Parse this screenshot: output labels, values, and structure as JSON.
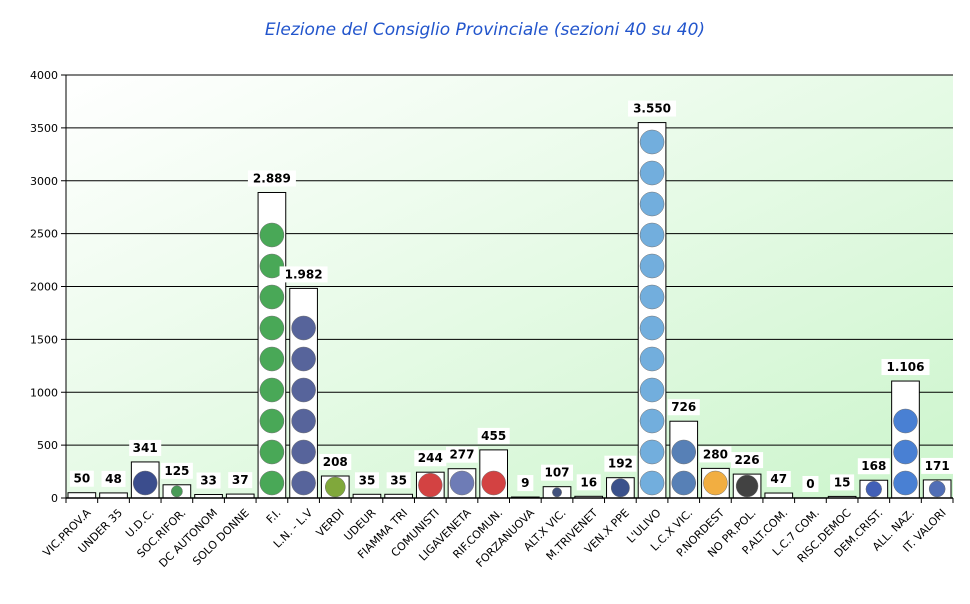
{
  "chart_data": {
    "type": "bar",
    "title": "Elezione del Consiglio Provinciale (sezioni 40 su 40)",
    "xlabel": "",
    "ylabel": "",
    "ylim": [
      0,
      4000
    ],
    "yticks": [
      "0",
      "500",
      "1000",
      "1500",
      "2000",
      "2500",
      "3000",
      "3500",
      "4000"
    ],
    "grid": true,
    "categories": [
      "VIC.PROV.A",
      "UNDER 35",
      "U.D.C.",
      "SOC.RIFOR.",
      "DC AUTONOM",
      "SOLO DONNE",
      "F.I.",
      "L.N. - L.V",
      "VERDI",
      "UDEUR",
      "FIAMMA TRI",
      "COMUNISTI",
      "LIGAVENETA",
      "RIF.COMUN.",
      "FORZANUOVA",
      "ALT.X VIC.",
      "M.TRIVENET",
      "VEN.X PPE",
      "L'ULIVO",
      "L.C.X VIC.",
      "P.NORDEST",
      "NO PR.POL.",
      "P.ALT.COM.",
      "L.C.7 COM.",
      "RISC.DEMOC",
      "DEM.CRIST.",
      "ALL. NAZ.",
      "IT. VALORI"
    ],
    "values": [
      50,
      48,
      341,
      125,
      33,
      37,
      2889,
      1982,
      208,
      35,
      35,
      244,
      277,
      455,
      9,
      107,
      16,
      192,
      3550,
      726,
      280,
      226,
      47,
      0,
      15,
      168,
      1106,
      171
    ],
    "data_labels": [
      "50",
      "48",
      "341",
      "125",
      "33",
      "37",
      "2.889",
      "1.982",
      "208",
      "35",
      "35",
      "244",
      "277",
      "455",
      "9",
      "107",
      "16",
      "192",
      "3.550",
      "726",
      "280",
      "226",
      "47",
      "0",
      "15",
      "168",
      "1.106",
      "171"
    ],
    "logo_colors": [
      "#cc3333",
      "#cc2222",
      "#1a2f7a",
      "#2a8a3a",
      "#2244aa",
      "#aa3322",
      "#2a9a3a",
      "#3a4a8a",
      "#6a9a1a",
      "#aa4433",
      "#338833",
      "#cc2222",
      "#5566aa",
      "#cc2222",
      "#333333",
      "#223366",
      "#336633",
      "#1a3377",
      "#5aa0d8",
      "#3a6aaa",
      "#f0a020",
      "#222222",
      "#888888",
      "#888888",
      "#666666",
      "#2244aa",
      "#2a6acc",
      "#3355aa"
    ],
    "colors": {
      "title": "#2255cc",
      "bg_end": "#ccf5cc"
    }
  }
}
